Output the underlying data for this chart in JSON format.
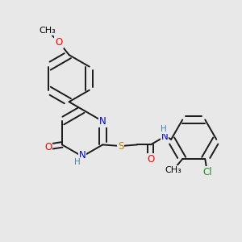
{
  "background_color": "#e8e8e8",
  "atom_colors": {
    "C": "#000000",
    "N": "#0000cd",
    "O": "#ff0000",
    "S": "#b8860b",
    "Cl": "#228b22",
    "H": "#4682b4"
  },
  "bond_color": "#1a1a1a",
  "bond_width": 1.4,
  "font_size": 8.5
}
